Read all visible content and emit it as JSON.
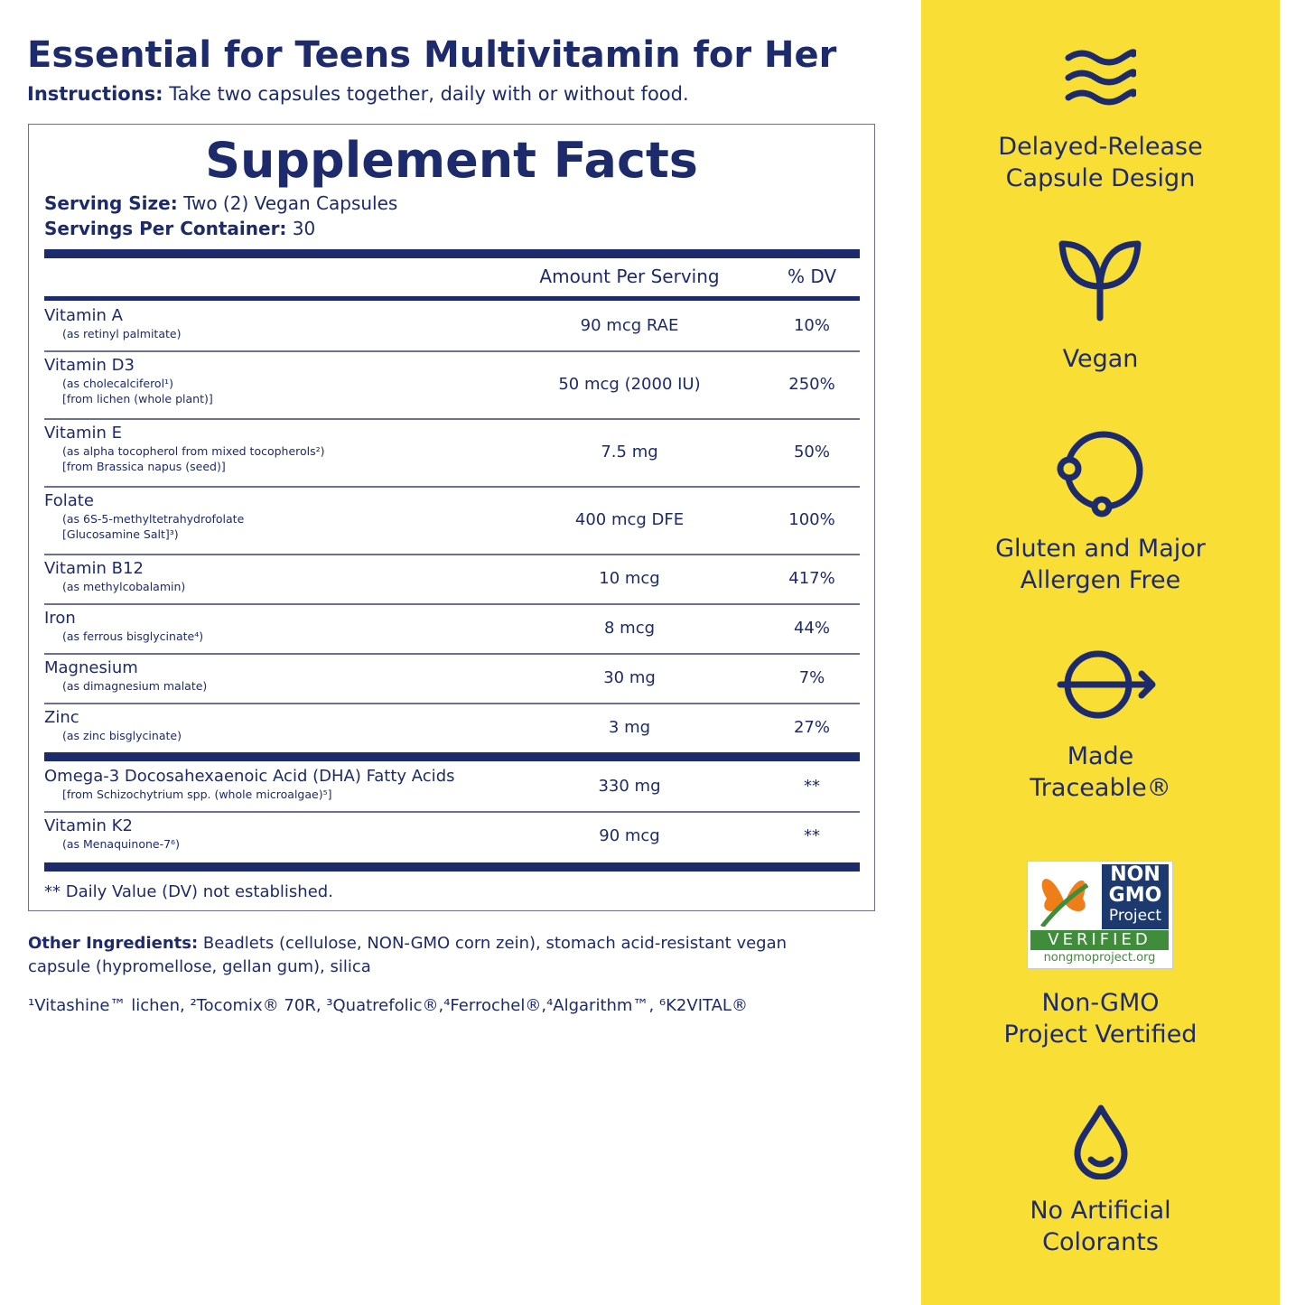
{
  "header": {
    "title": "Essential for Teens Multivitamin for Her",
    "instructions_label": "Instructions:",
    "instructions": "Take two capsules together, daily with or without food."
  },
  "facts": {
    "title": "Supplement Facts",
    "serving_size_label": "Serving Size:",
    "serving_size": "Two (2) Vegan Capsules",
    "servings_label": "Servings Per Container:",
    "servings": 30,
    "columns": [
      "Amount Per Serving",
      "% DV"
    ],
    "groups": [
      [
        {
          "name": "Vitamin A",
          "source": [
            "(as retinyl palmitate)"
          ],
          "amount": "90 mcg RAE",
          "dv": "10%"
        },
        {
          "name": "Vitamin D3",
          "source": [
            "(as cholecalciferol¹)",
            "[from lichen (whole plant)]"
          ],
          "amount": "50 mcg (2000 IU)",
          "dv": "250%"
        },
        {
          "name": "Vitamin E",
          "source": [
            "(as alpha tocopherol from mixed tocopherols²)",
            "[from Brassica napus (seed)]"
          ],
          "amount": "7.5 mg",
          "dv": "50%"
        },
        {
          "name": "Folate",
          "source": [
            "(as 6S-5-methyltetrahydrofolate",
            "[Glucosamine Salt]³)"
          ],
          "amount": "400 mcg DFE",
          "dv": "100%"
        },
        {
          "name": "Vitamin B12",
          "source": [
            "(as methylcobalamin)"
          ],
          "amount": "10 mcg",
          "dv": "417%"
        },
        {
          "name": "Iron",
          "source": [
            "(as ferrous bisglycinate⁴)"
          ],
          "amount": "8 mcg",
          "dv": "44%"
        },
        {
          "name": "Magnesium",
          "source": [
            "(as dimagnesium malate)"
          ],
          "amount": "30 mg",
          "dv": "7%"
        },
        {
          "name": "Zinc",
          "source": [
            "(as zinc bisglycinate)"
          ],
          "amount": "3 mg",
          "dv": "27%"
        }
      ],
      [
        {
          "name": "Omega-3 Docosahexaenoic Acid (DHA) Fatty Acids",
          "source": [
            "[from Schizochytrium spp. (whole microalgae)⁵]"
          ],
          "amount": "330 mg",
          "dv": "**"
        },
        {
          "name": "Vitamin K2",
          "source": [
            "(as Menaquinone-7⁶)"
          ],
          "amount": "90 mcg",
          "dv": "**"
        }
      ]
    ],
    "footnote": "** Daily Value (DV) not established."
  },
  "other_ingredients": {
    "label": "Other Ingredients:",
    "text": "Beadlets (cellulose, NON-GMO corn zein), stomach acid-resistant vegan capsule (hypromellose, gellan gum), silica"
  },
  "trademarks": "¹Vitashine™ lichen, ²Tocomix® 70R, ³Quatrefolic®,⁴Ferrochel®,⁴Algarithm™, ⁶K2VITAL®",
  "badge": {
    "lines": [
      "NON",
      "GMO",
      "Project"
    ],
    "verified": "VERIFIED",
    "url": "nongmoproject.org"
  },
  "features": [
    {
      "lines": [
        "Delayed-Release",
        "Capsule Design"
      ]
    },
    {
      "lines": [
        "Vegan"
      ]
    },
    {
      "lines": [
        "Gluten and Major",
        "Allergen Free"
      ]
    },
    {
      "lines": [
        "Made",
        "Traceable®"
      ]
    },
    {
      "lines": [
        "Non-GMO",
        "Project Vertified"
      ]
    },
    {
      "lines": [
        "No Artificial",
        "Colorants"
      ]
    }
  ]
}
